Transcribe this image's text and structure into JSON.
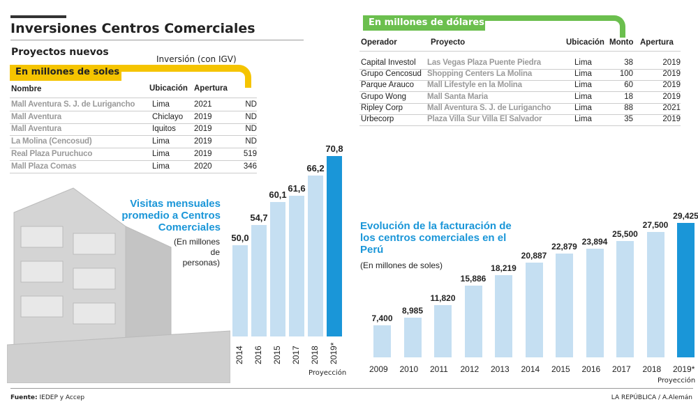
{
  "title": "Inversiones Centros Comerciales",
  "left_table": {
    "subtitle": "Proyectos nuevos",
    "inversion_label": "Inversión (con IGV)",
    "banner": "En millones de soles",
    "accent": "#f5c400",
    "headers": [
      "Nombre",
      "Ubicación",
      "Apertura"
    ],
    "rows": [
      [
        "Mall Aventura S. J. de Lurigancho",
        "Lima",
        "2021",
        "ND"
      ],
      [
        "Mall Aventura",
        "Chiclayo",
        "2019",
        "ND"
      ],
      [
        "Mall Aventura",
        "Iquitos",
        "2019",
        "ND"
      ],
      [
        "La Molina (Cencosud)",
        "Lima",
        "2019",
        "ND"
      ],
      [
        "Real Plaza Puruchuco",
        "Lima",
        "2019",
        "519"
      ],
      [
        "Mall Plaza Comas",
        "Lima",
        "2020",
        "346"
      ]
    ]
  },
  "right_table": {
    "banner": "En millones de dólares",
    "accent": "#6bbf4e",
    "headers": [
      "Operador",
      "Proyecto",
      "Ubicación",
      "Monto",
      "Apertura"
    ],
    "rows": [
      [
        "Capital Investol",
        "Las Vegas Plaza Puente Piedra",
        "Lima",
        "38",
        "2019"
      ],
      [
        "Grupo Cencosud",
        "Shopping Centers La Molina",
        "Lima",
        "100",
        "2019"
      ],
      [
        "Parque Arauco",
        "Mall Lifestyle en la Molina",
        "Lima",
        "60",
        "2019"
      ],
      [
        "Grupo Wong",
        "Mall Santa Maria",
        "Lima",
        "18",
        "2019"
      ],
      [
        "Ripley Corp",
        "Mall Aventura S. J. de Lurigancho",
        "Lima",
        "88",
        "2021"
      ],
      [
        "Urbecorp",
        "Plaza Villa Sur Villa El Salvador",
        "Lima",
        "35",
        "2019"
      ]
    ]
  },
  "chart_data": [
    {
      "type": "bar",
      "title": "Visitas mensuales promedio a Centros Comerciales",
      "subtitle": "(En millones de personas)",
      "categories": [
        "2014",
        "2016",
        "2015",
        "2017",
        "2018",
        "2019*"
      ],
      "values": [
        50.0,
        54.7,
        60.1,
        61.6,
        66.2,
        70.8
      ],
      "value_labels": [
        "50,0",
        "54,7",
        "60,1",
        "61,6",
        "66,2",
        "70,8"
      ],
      "note": "Proyección",
      "colors": {
        "bar": "#c5dff2",
        "highlight": "#1a96d8"
      }
    },
    {
      "type": "bar",
      "title": "Evolución de la facturación de los centros comerciales en el Perú",
      "subtitle": "(En millones de soles)",
      "categories": [
        "2009",
        "2010",
        "2011",
        "2012",
        "2013",
        "2014",
        "2015",
        "2016",
        "2017",
        "2018",
        "2019*"
      ],
      "values": [
        7400,
        8985,
        11820,
        15886,
        18219,
        20887,
        22879,
        23894,
        25500,
        27500,
        29425
      ],
      "value_labels": [
        "7,400",
        "8,985",
        "11,820",
        "15,886",
        "18,219",
        "20,887",
        "22,879",
        "23,894",
        "25,500",
        "27,500",
        "29,425"
      ],
      "note": "Proyección",
      "colors": {
        "bar": "#c5dff2",
        "highlight": "#1a96d8"
      }
    }
  ],
  "footer": {
    "source_label": "Fuente:",
    "source": "IEDEP y Accep",
    "credit": "LA REPÚBLICA / A.Alemán"
  }
}
